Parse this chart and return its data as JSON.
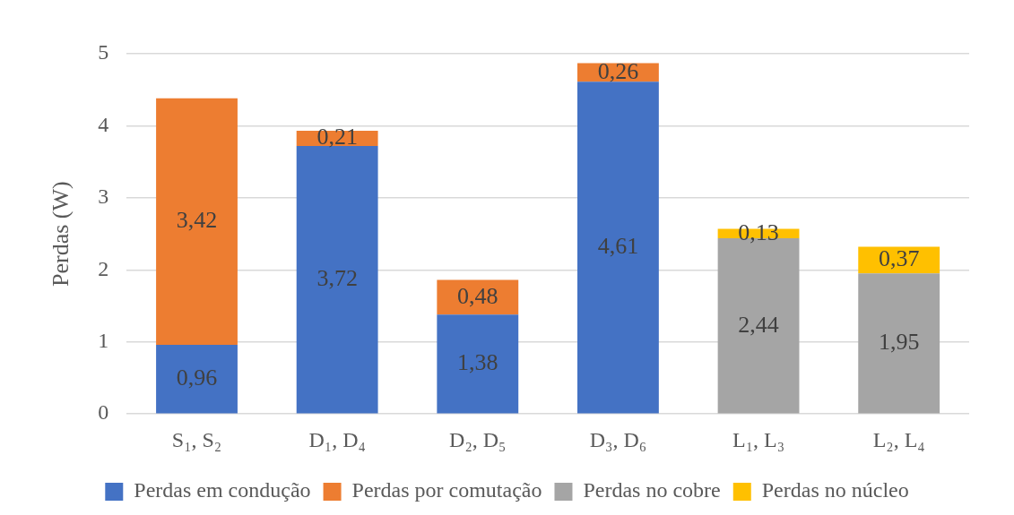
{
  "chart_data": {
    "type": "bar",
    "stacked": true,
    "ylabel": "Perdas (W)",
    "categories": [
      "S₁, S₂",
      "D₁, D₄",
      "D₂, D₅",
      "D₃, D₆",
      "L₁, L₃",
      "L₂, L₄"
    ],
    "series": [
      {
        "name": "Perdas em condução",
        "color": "#4472c4",
        "values": [
          0.96,
          3.72,
          1.38,
          4.61,
          null,
          null
        ],
        "value_labels": [
          "0,96",
          "3,72",
          "1,38",
          "4,61",
          null,
          null
        ]
      },
      {
        "name": "Perdas por comutação",
        "color": "#ed7d31",
        "values": [
          3.42,
          0.21,
          0.48,
          0.26,
          null,
          null
        ],
        "value_labels": [
          "3,42",
          "0,21",
          "0,48",
          "0,26",
          null,
          null
        ]
      },
      {
        "name": "Perdas no cobre",
        "color": "#a5a5a5",
        "values": [
          null,
          null,
          null,
          null,
          2.44,
          1.95
        ],
        "value_labels": [
          null,
          null,
          null,
          null,
          "2,44",
          "1,95"
        ]
      },
      {
        "name": "Perdas no núcleo",
        "color": "#ffc000",
        "values": [
          null,
          null,
          null,
          null,
          0.13,
          0.37
        ],
        "value_labels": [
          null,
          null,
          null,
          null,
          "0,13",
          "0,37"
        ]
      }
    ],
    "ylim": [
      0,
      5
    ],
    "yticks": [
      0,
      1,
      2,
      3,
      4,
      5
    ],
    "grid": "y",
    "legend": "bottom"
  }
}
